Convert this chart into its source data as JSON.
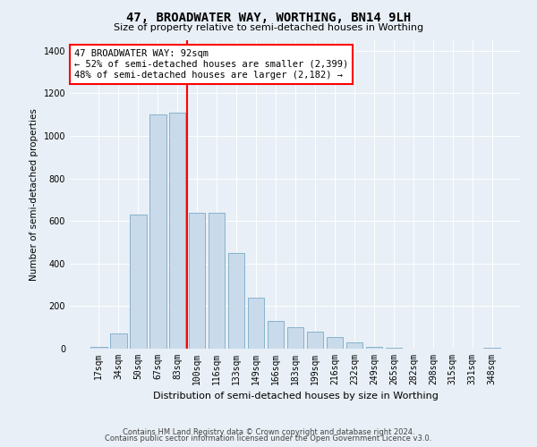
{
  "title": "47, BROADWATER WAY, WORTHING, BN14 9LH",
  "subtitle": "Size of property relative to semi-detached houses in Worthing",
  "xlabel": "Distribution of semi-detached houses by size in Worthing",
  "ylabel": "Number of semi-detached properties",
  "footnote1": "Contains HM Land Registry data © Crown copyright and database right 2024.",
  "footnote2": "Contains public sector information licensed under the Open Government Licence v3.0.",
  "annotation_title": "47 BROADWATER WAY: 92sqm",
  "annotation_line1": "← 52% of semi-detached houses are smaller (2,399)",
  "annotation_line2": "48% of semi-detached houses are larger (2,182) →",
  "bar_labels": [
    "17sqm",
    "34sqm",
    "50sqm",
    "67sqm",
    "83sqm",
    "100sqm",
    "116sqm",
    "133sqm",
    "149sqm",
    "166sqm",
    "183sqm",
    "199sqm",
    "216sqm",
    "232sqm",
    "249sqm",
    "265sqm",
    "282sqm",
    "298sqm",
    "315sqm",
    "331sqm",
    "348sqm"
  ],
  "bar_values": [
    10,
    70,
    630,
    1100,
    1110,
    640,
    640,
    450,
    240,
    130,
    100,
    80,
    55,
    30,
    10,
    5,
    2,
    1,
    0,
    0,
    5
  ],
  "bar_color": "#c9daea",
  "bar_edge_color": "#7aaac8",
  "vline_pos": 4.5,
  "vline_color": "red",
  "ylim": [
    0,
    1450
  ],
  "yticks": [
    0,
    200,
    400,
    600,
    800,
    1000,
    1200,
    1400
  ],
  "background_color": "#e8eff6",
  "plot_bg_color": "#e8eff6",
  "grid_color": "#ffffff",
  "title_fontsize": 10,
  "subtitle_fontsize": 8,
  "ylabel_fontsize": 7.5,
  "xlabel_fontsize": 8,
  "tick_fontsize": 7,
  "annotation_fontsize": 7.5,
  "footnote_fontsize": 6
}
